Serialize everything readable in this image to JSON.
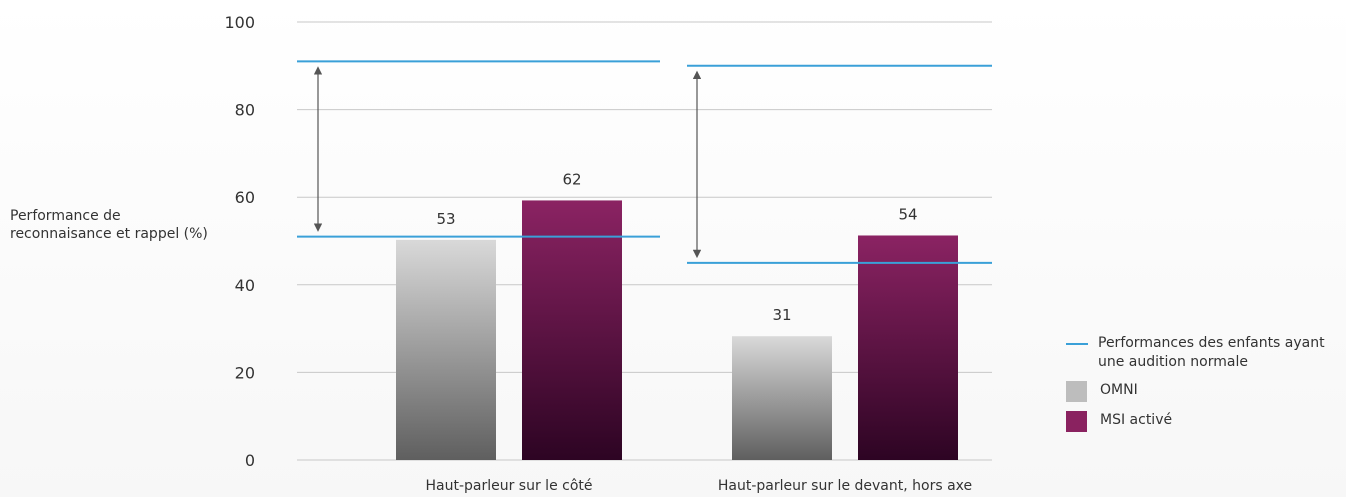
{
  "chart_data": {
    "type": "bar",
    "ylabel": "Performance de reconnaisance et rappel (%)",
    "ylim": [
      0,
      100
    ],
    "yticks": [
      0,
      20,
      40,
      60,
      80,
      100
    ],
    "grid": true,
    "categories": [
      "Haut-parleur sur le côté",
      "Haut-parleur sur le devant, hors axe"
    ],
    "series": [
      {
        "name": "OMNI",
        "values": [
          53,
          31
        ],
        "color": "#bdbdbd"
      },
      {
        "name": "MSI activé",
        "values": [
          62,
          54
        ],
        "color": "#8a2260"
      }
    ],
    "reference_lines": {
      "name": "Performances des enfants ayant une audition normale",
      "color": "#3aa0d8",
      "groups": [
        {
          "category": "Haut-parleur sur le côté",
          "upper": 91,
          "lower": 51
        },
        {
          "category": "Haut-parleur sur le devant, hors axe",
          "upper": 90,
          "lower": 45
        }
      ]
    },
    "legend_position": "bottom-right"
  },
  "legend": {
    "items": [
      {
        "label": "Performances des enfants ayant une audition normale",
        "kind": "line",
        "color": "#3aa0d8"
      },
      {
        "label": "OMNI",
        "kind": "swatch",
        "color": "#bdbdbd"
      },
      {
        "label": "MSI activé",
        "kind": "swatch",
        "color": "#8a2260"
      }
    ]
  }
}
